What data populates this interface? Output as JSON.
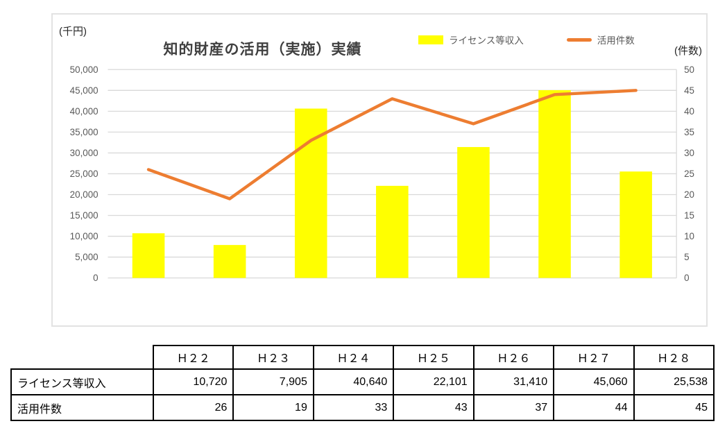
{
  "chart_data": {
    "type": "bar",
    "combo": "bar+line",
    "title": "知的財産の活用（実施）実績",
    "categories": [
      "Ｈ２２",
      "Ｈ２３",
      "Ｈ２４",
      "Ｈ２５",
      "Ｈ２６",
      "Ｈ２７",
      "Ｈ２８"
    ],
    "series": [
      {
        "name": "ライセンス等収入",
        "type": "bar",
        "axis": "left",
        "values": [
          10720,
          7905,
          40640,
          22101,
          31410,
          45060,
          25538
        ],
        "color": "#FFFF00"
      },
      {
        "name": "活用件数",
        "type": "line",
        "axis": "right",
        "values": [
          26,
          19,
          33,
          43,
          37,
          44,
          45
        ],
        "color": "#ED7D31"
      }
    ],
    "left_axis": {
      "label": "(千円)",
      "min": 0,
      "max": 50000,
      "step": 5000
    },
    "right_axis": {
      "label": "(件数)",
      "min": 0,
      "max": 50,
      "step": 5
    },
    "grid": true,
    "legend_position": "top-right",
    "colors": {
      "grid": "#D9D9D9",
      "axis_line": "#D9D9D9",
      "tick_text": "#595959",
      "title": "#404040",
      "frame_border": "#E2E2E2"
    },
    "x_axis_labels_shown": false
  },
  "table": {
    "corner": "",
    "columns": [
      "Ｈ２２",
      "Ｈ２３",
      "Ｈ２４",
      "Ｈ２５",
      "Ｈ２６",
      "Ｈ２７",
      "Ｈ２８"
    ],
    "rows": [
      {
        "label": "ライセンス等収入",
        "values": [
          10720,
          7905,
          40640,
          22101,
          31410,
          45060,
          25538
        ],
        "format": "comma"
      },
      {
        "label": "活用件数",
        "values": [
          26,
          19,
          33,
          43,
          37,
          44,
          45
        ],
        "format": "plain"
      }
    ]
  }
}
